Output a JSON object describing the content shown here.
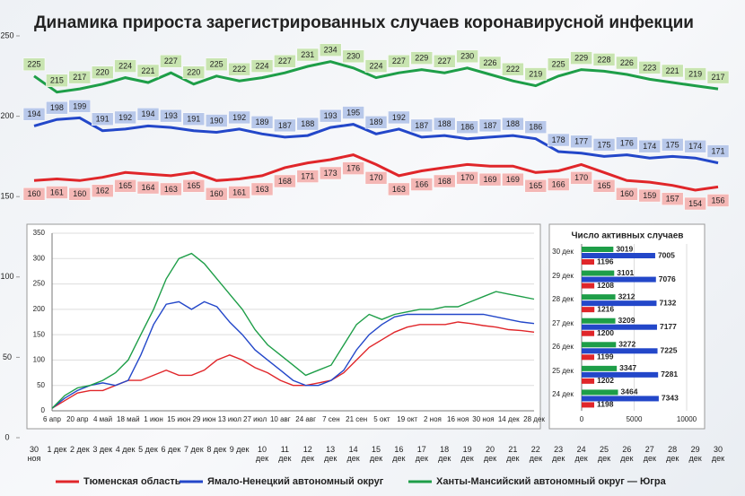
{
  "chart_data": [
    {
      "type": "line",
      "title": "Динамика прироста зарегистрированных случаев коронавирусной инфекции",
      "categories": [
        "30 ноя",
        "1 дек",
        "2 дек",
        "3 дек",
        "4 дек",
        "5 дек",
        "6 дек",
        "7 дек",
        "8 дек",
        "9 дек",
        "10 дек",
        "11 дек",
        "12 дек",
        "13 дек",
        "14 дек",
        "15 дек",
        "16 дек",
        "17 дек",
        "18 дек",
        "19 дек",
        "20 дек",
        "21 дек",
        "22 дек",
        "23 дек",
        "24 дек",
        "25 дек",
        "26 дек",
        "27 дек",
        "28 дек",
        "29 дек",
        "30 дек"
      ],
      "series": [
        {
          "name": "Тюменская область",
          "color": "#e0262a",
          "values": [
            160,
            161,
            160,
            162,
            165,
            164,
            163,
            165,
            160,
            161,
            163,
            168,
            171,
            173,
            176,
            170,
            163,
            166,
            168,
            170,
            169,
            169,
            165,
            166,
            170,
            165,
            160,
            159,
            157,
            154,
            156
          ]
        },
        {
          "name": "Ямало-Ненецкий автономный округ",
          "color": "#2347c9",
          "values": [
            194,
            198,
            199,
            191,
            192,
            194,
            193,
            191,
            190,
            192,
            189,
            187,
            188,
            193,
            195,
            189,
            192,
            187,
            188,
            186,
            187,
            188,
            186,
            178,
            177,
            175,
            176,
            174,
            175,
            174,
            171
          ]
        },
        {
          "name": "Ханты-Мансийский автономный округ — Югра",
          "color": "#1e9e48",
          "values": [
            225,
            215,
            217,
            220,
            224,
            221,
            227,
            220,
            225,
            222,
            224,
            227,
            231,
            234,
            230,
            224,
            227,
            229,
            227,
            230,
            226,
            222,
            219,
            225,
            229,
            228,
            226,
            223,
            221,
            219,
            217
          ]
        }
      ],
      "ylim": [
        0,
        250
      ],
      "yticks": [
        0,
        50,
        100,
        150,
        200,
        250
      ]
    },
    {
      "type": "line",
      "categories": [
        "6 апр",
        null,
        "20 апр",
        null,
        "4 май",
        null,
        "18 май",
        null,
        "1 июн",
        null,
        "15 июн",
        null,
        "29 июн",
        null,
        "13 июл",
        null,
        "27 июл",
        null,
        "10 авг",
        null,
        "24 авг",
        null,
        "7 сен",
        null,
        "21 сен",
        null,
        "5 окт",
        null,
        "19 окт",
        null,
        "2 ноя",
        null,
        "16 ноя",
        null,
        "30 ноя",
        null,
        "14 дек",
        null,
        "28 дек"
      ],
      "series": [
        {
          "color": "#e0262a",
          "values": [
            5,
            20,
            35,
            40,
            40,
            50,
            60,
            60,
            70,
            80,
            70,
            70,
            80,
            100,
            110,
            100,
            85,
            75,
            60,
            50,
            50,
            55,
            60,
            75,
            100,
            125,
            140,
            155,
            165,
            170,
            170,
            170,
            175,
            172,
            168,
            165,
            160,
            158,
            155
          ]
        },
        {
          "color": "#2347c9",
          "values": [
            5,
            25,
            40,
            50,
            55,
            50,
            60,
            110,
            170,
            210,
            215,
            200,
            215,
            205,
            175,
            150,
            120,
            100,
            80,
            60,
            50,
            50,
            60,
            80,
            120,
            150,
            170,
            185,
            190,
            190,
            190,
            190,
            190,
            190,
            190,
            185,
            180,
            175,
            172
          ]
        },
        {
          "color": "#1e9e48",
          "values": [
            5,
            30,
            45,
            50,
            60,
            75,
            100,
            150,
            200,
            260,
            300,
            310,
            290,
            260,
            230,
            200,
            160,
            130,
            110,
            90,
            70,
            80,
            90,
            130,
            170,
            190,
            180,
            190,
            195,
            200,
            200,
            205,
            205,
            215,
            225,
            235,
            230,
            225,
            220
          ]
        }
      ],
      "ylim": [
        0,
        350
      ],
      "yticks": [
        0,
        50,
        100,
        150,
        200,
        250,
        300,
        350
      ]
    },
    {
      "type": "hbar",
      "title": "Число активных случаев",
      "categories": [
        "30 дек",
        "29 дек",
        "28 дек",
        "27 дек",
        "26 дек",
        "25 дек",
        "24 дек"
      ],
      "series": [
        {
          "color": "#1e9e48",
          "values": [
            3019,
            3101,
            3212,
            3209,
            3272,
            3347,
            3464
          ]
        },
        {
          "color": "#2347c9",
          "values": [
            7005,
            7076,
            7132,
            7177,
            7225,
            7281,
            7343
          ]
        },
        {
          "color": "#e0262a",
          "values": [
            1196,
            1208,
            1216,
            1200,
            1199,
            1202,
            1198
          ]
        }
      ],
      "xlim": [
        0,
        10000
      ],
      "xticks": [
        0,
        5000,
        10000
      ]
    }
  ]
}
